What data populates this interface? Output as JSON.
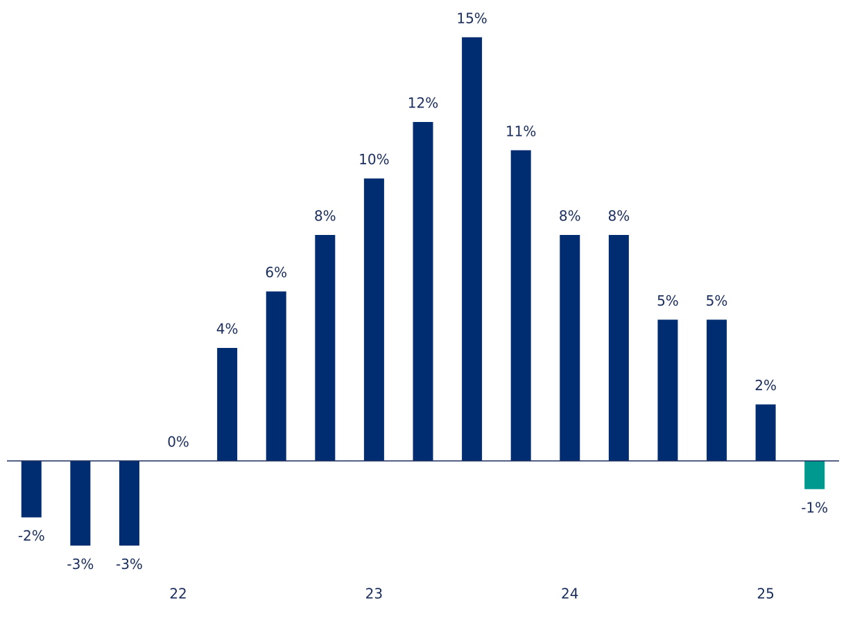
{
  "chart_data": {
    "type": "bar",
    "categories": [
      null,
      null,
      null,
      "22",
      null,
      null,
      null,
      "23",
      null,
      null,
      null,
      "24",
      null,
      null,
      null,
      "25",
      null
    ],
    "values": [
      -2,
      -3,
      -3,
      0,
      4,
      6,
      8,
      10,
      12,
      15,
      11,
      8,
      8,
      5,
      5,
      2,
      -1
    ],
    "value_labels": [
      "-2%",
      "-3%",
      "-3%",
      "0%",
      "4%",
      "6%",
      "8%",
      "10%",
      "12%",
      "15%",
      "11%",
      "8%",
      "8%",
      "5%",
      "5%",
      "2%",
      "-1%"
    ],
    "colors": [
      "#002d72",
      "#002d72",
      "#002d72",
      "#002d72",
      "#002d72",
      "#002d72",
      "#002d72",
      "#002d72",
      "#002d72",
      "#002d72",
      "#002d72",
      "#002d72",
      "#002d72",
      "#002d72",
      "#002d72",
      "#002d72",
      "#00998f"
    ],
    "ylim": [
      -4,
      16
    ]
  }
}
